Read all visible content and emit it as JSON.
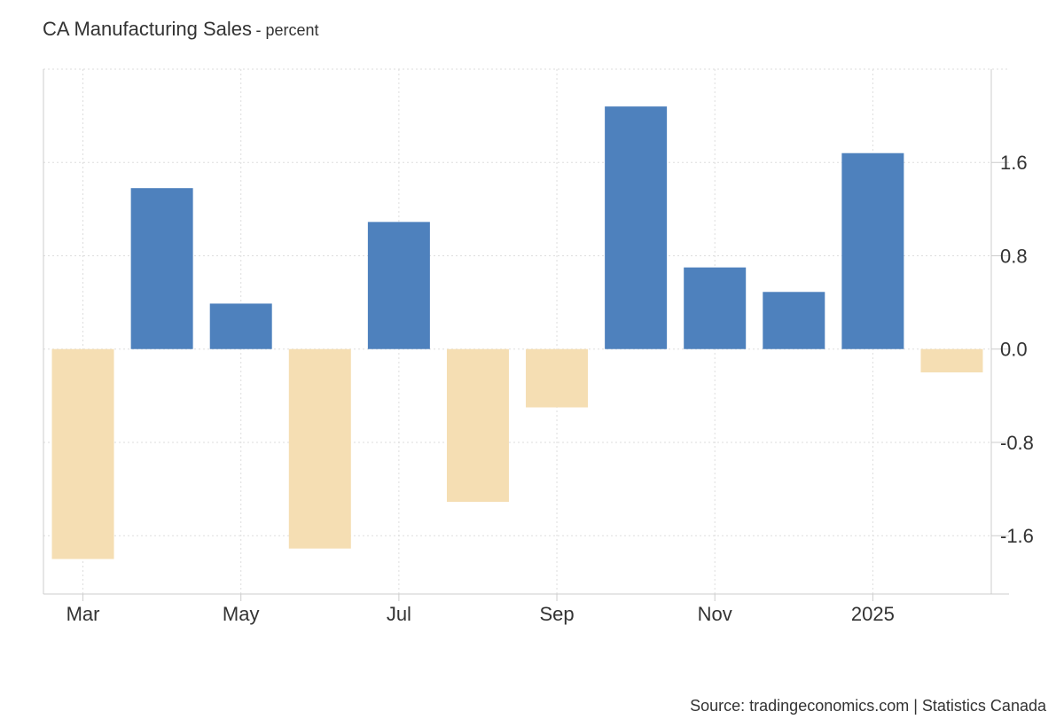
{
  "header": {
    "title": "CA Manufacturing Sales",
    "subtitle": "- percent"
  },
  "footer": {
    "source": "Source: tradingeconomics.com | Statistics Canada"
  },
  "colors": {
    "positive": "#4e81bd",
    "negative": "#f5deb3",
    "grid": "#dddddd",
    "axis": "#cccccc"
  },
  "chart_data": {
    "type": "bar",
    "categories": [
      "2024-03",
      "2024-04",
      "2024-05",
      "2024-06",
      "2024-07",
      "2024-08",
      "2024-09",
      "2024-10",
      "2024-11",
      "2024-12",
      "2025-01",
      "2025-02"
    ],
    "values": [
      -1.8,
      1.38,
      0.39,
      -1.71,
      1.09,
      -1.31,
      -0.5,
      2.08,
      0.7,
      0.49,
      1.68,
      -0.2
    ],
    "x_tick_labels": [
      "Mar",
      "May",
      "Jul",
      "Sep",
      "Nov",
      "2025"
    ],
    "y_ticks": [
      "-1.6",
      "-0.8",
      "0.0",
      "0.8",
      "1.6"
    ],
    "ylim": [
      -2.1,
      2.4
    ],
    "grid": true,
    "y_axis_side": "right",
    "legend": "none"
  }
}
